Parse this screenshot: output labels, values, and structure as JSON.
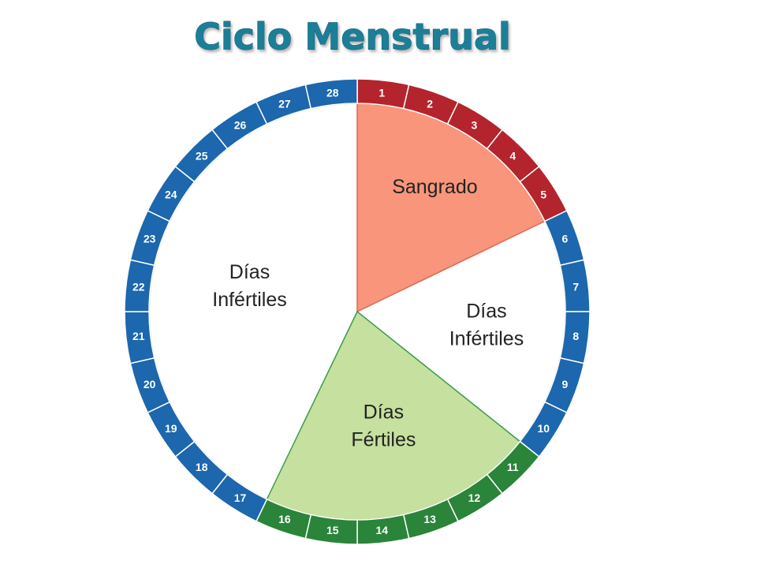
{
  "title": "Ciclo Menstrual",
  "days": [
    {
      "number": 1,
      "color": "#b3242c"
    },
    {
      "number": 2,
      "color": "#b3242c"
    },
    {
      "number": 3,
      "color": "#b3242c"
    },
    {
      "number": 4,
      "color": "#b3242c"
    },
    {
      "number": 5,
      "color": "#b3242c"
    },
    {
      "number": 6,
      "color": "#1c67ad"
    },
    {
      "number": 7,
      "color": "#1c67ad"
    },
    {
      "number": 8,
      "color": "#1c67ad"
    },
    {
      "number": 9,
      "color": "#1c67ad"
    },
    {
      "number": 10,
      "color": "#1c67ad"
    },
    {
      "number": 11,
      "color": "#2a8439"
    },
    {
      "number": 12,
      "color": "#2a8439"
    },
    {
      "number": 13,
      "color": "#2a8439"
    },
    {
      "number": 14,
      "color": "#2a8439"
    },
    {
      "number": 15,
      "color": "#2a8439"
    },
    {
      "number": 16,
      "color": "#2a8439"
    },
    {
      "number": 17,
      "color": "#1c67ad"
    },
    {
      "number": 18,
      "color": "#1c67ad"
    },
    {
      "number": 19,
      "color": "#1c67ad"
    },
    {
      "number": 20,
      "color": "#1c67ad"
    },
    {
      "number": 21,
      "color": "#1c67ad"
    },
    {
      "number": 22,
      "color": "#1c67ad"
    },
    {
      "number": 23,
      "color": "#1c67ad"
    },
    {
      "number": 24,
      "color": "#1c67ad"
    },
    {
      "number": 25,
      "color": "#1c67ad"
    },
    {
      "number": 26,
      "color": "#1c67ad"
    },
    {
      "number": 27,
      "color": "#1c67ad"
    },
    {
      "number": 28,
      "color": "#1c67ad"
    }
  ],
  "sectors": [
    {
      "lines": [
        "Sangrado"
      ],
      "start_day": 1,
      "end_day": 5,
      "color": "#f8957b",
      "border": "#d96a5a"
    },
    {
      "lines": [
        "Días",
        "Infértiles"
      ],
      "start_day": 6,
      "end_day": 10,
      "color": "#ffffff",
      "border": "#ffffff"
    },
    {
      "lines": [
        "Días",
        "Fértiles"
      ],
      "start_day": 11,
      "end_day": 16,
      "color": "#c6e09f",
      "border": "#3c9a4c"
    },
    {
      "lines": [
        "Días",
        "Infértiles"
      ],
      "start_day": 17,
      "end_day": 28,
      "color": "#ffffff",
      "border": "#ffffff"
    }
  ]
}
